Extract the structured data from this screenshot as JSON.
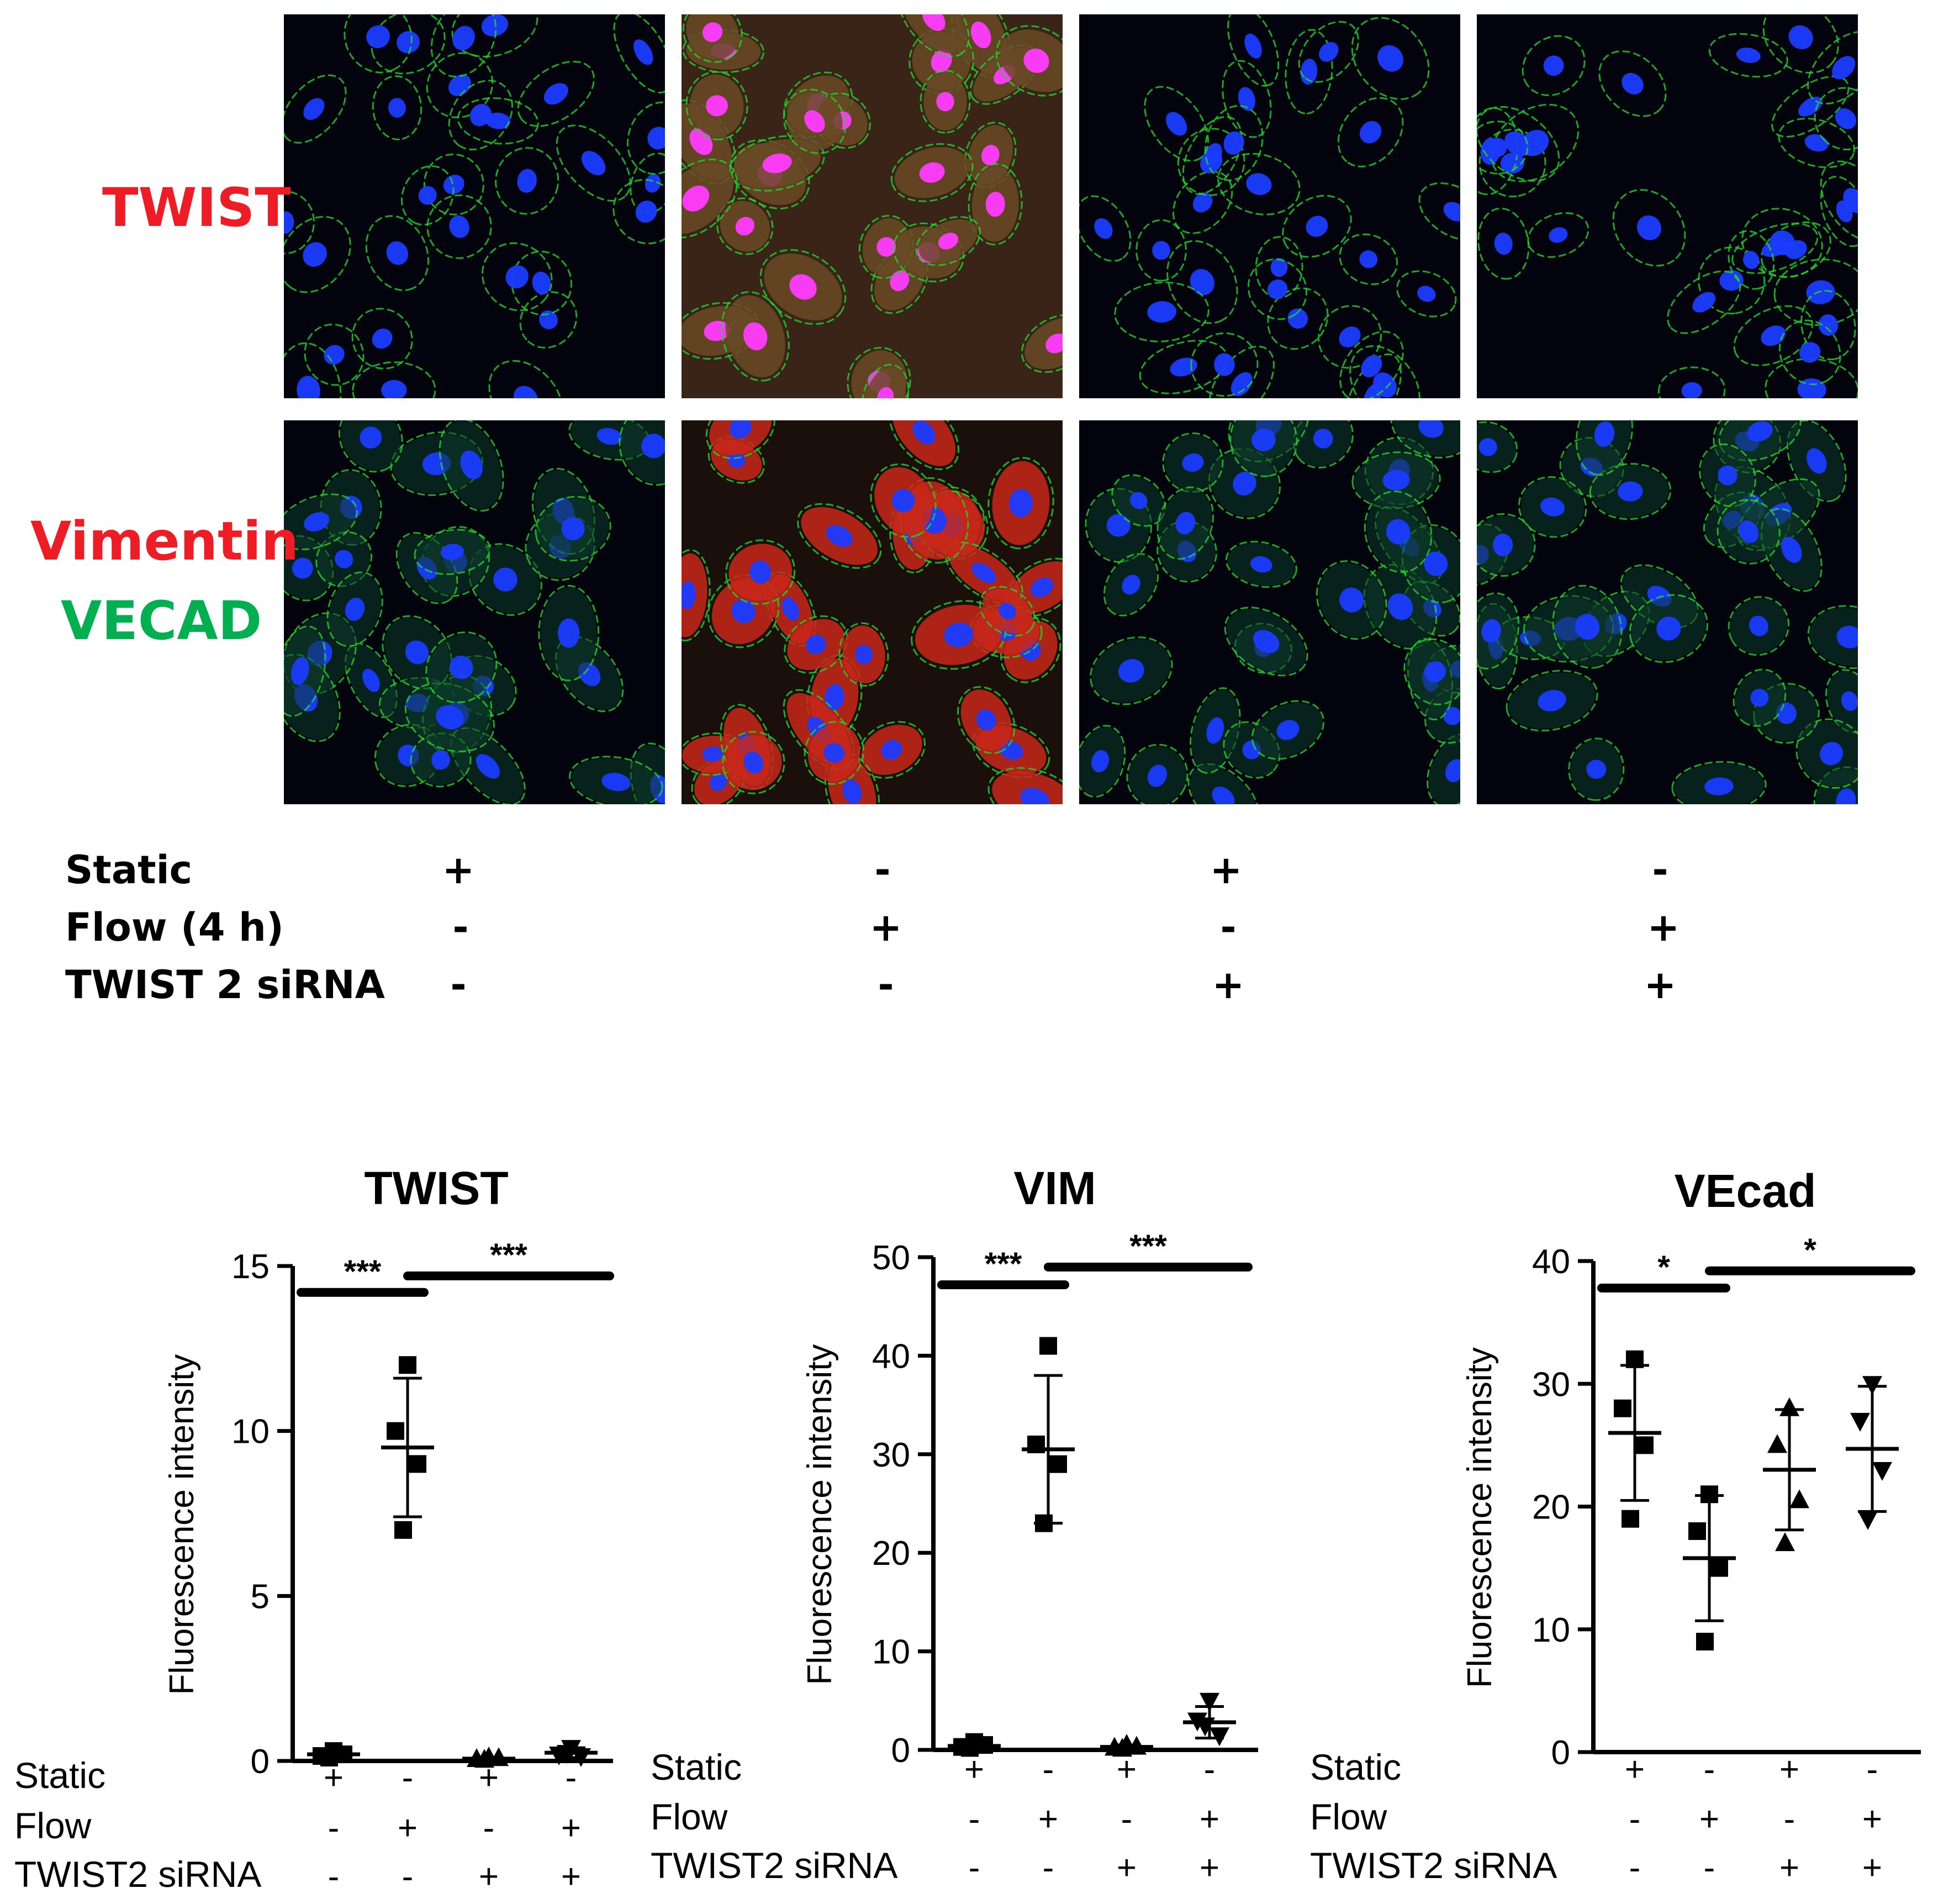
{
  "figure": {
    "micrograph_rows": [
      {
        "labels": [
          {
            "text": "TWIST",
            "color": "#ee1c24"
          }
        ]
      },
      {
        "labels": [
          {
            "text": "Vimentin",
            "color": "#ee1c24"
          },
          {
            "text": "VECAD",
            "color": "#00b050"
          }
        ]
      }
    ],
    "micrograph_columns": [
      {
        "red_signal": "none"
      },
      {
        "red_signal": "high"
      },
      {
        "red_signal": "none"
      },
      {
        "red_signal": "none"
      }
    ],
    "colors": {
      "nuclei": "#1a3cff",
      "junction": "#22d32a",
      "red": "#ff2a1a",
      "magenta": "#ff3cff"
    },
    "condition_table": {
      "rows": [
        {
          "label": "Static",
          "signs": [
            "+",
            "-",
            "+",
            "-"
          ]
        },
        {
          "label": "Flow (4 h)",
          "signs": [
            "-",
            "+",
            "-",
            "+"
          ]
        },
        {
          "label": "TWIST 2 siRNA",
          "signs": [
            "-",
            "-",
            "+",
            "+"
          ]
        }
      ]
    }
  },
  "chart_data": [
    {
      "type": "scatter",
      "title": "TWIST",
      "ylabel": "Fluorescence intensity",
      "ylim": [
        0,
        15
      ],
      "yticks": [
        "0",
        "5",
        "10",
        "15"
      ],
      "groups": [
        {
          "marker": "square",
          "values": [
            0.3,
            0.15,
            0.2,
            0.1
          ],
          "mean": 0.2,
          "sd": 0.1
        },
        {
          "marker": "square",
          "values": [
            12.0,
            10.0,
            9.0,
            7.0
          ],
          "mean": 9.5,
          "sd": 2.1
        },
        {
          "marker": "triangle-up",
          "values": [
            0.1,
            0.05,
            0.08,
            0.03
          ],
          "mean": 0.07,
          "sd": 0.04
        },
        {
          "marker": "triangle-down",
          "values": [
            0.4,
            0.2,
            0.15,
            0.25
          ],
          "mean": 0.25,
          "sd": 0.15
        }
      ],
      "significance": [
        {
          "label": "***",
          "from_group": 0,
          "to_group": 1,
          "y": 14.2
        },
        {
          "label": "***",
          "from_group": 1,
          "to_group": 3,
          "y": 14.7
        }
      ],
      "conditions": [
        {
          "label": "Static",
          "signs": [
            "+",
            "-",
            "+",
            "-"
          ]
        },
        {
          "label": "Flow",
          "signs": [
            "-",
            "+",
            "-",
            "+"
          ]
        },
        {
          "label": "TWIST2 siRNA",
          "signs": [
            "-",
            "-",
            "+",
            "+"
          ]
        }
      ]
    },
    {
      "type": "scatter",
      "title": "VIM",
      "ylabel": "Fluorescence intensity",
      "ylim": [
        0,
        50
      ],
      "yticks": [
        "0",
        "10",
        "20",
        "30",
        "40",
        "50"
      ],
      "groups": [
        {
          "marker": "square",
          "values": [
            0.8,
            0.3,
            0.5,
            0.2
          ],
          "mean": 0.4,
          "sd": 0.3
        },
        {
          "marker": "square",
          "values": [
            41.0,
            31.0,
            29.0,
            23.0
          ],
          "mean": 30.5,
          "sd": 7.5
        },
        {
          "marker": "triangle-up",
          "values": [
            0.5,
            0.2,
            0.3,
            0.1
          ],
          "mean": 0.3,
          "sd": 0.2
        },
        {
          "marker": "triangle-down",
          "values": [
            5.0,
            3.0,
            1.5,
            2.5
          ],
          "mean": 2.8,
          "sd": 1.6
        }
      ],
      "significance": [
        {
          "label": "***",
          "from_group": 0,
          "to_group": 1,
          "y": 47.2
        },
        {
          "label": "***",
          "from_group": 1,
          "to_group": 3,
          "y": 49.0
        }
      ],
      "conditions": [
        {
          "label": "Static",
          "signs": [
            "+",
            "-",
            "+",
            "-"
          ]
        },
        {
          "label": "Flow",
          "signs": [
            "-",
            "+",
            "-",
            "+"
          ]
        },
        {
          "label": "TWIST2 siRNA",
          "signs": [
            "-",
            "-",
            "+",
            "+"
          ]
        }
      ]
    },
    {
      "type": "scatter",
      "title": "VEcad",
      "ylabel": "Fluorescence intensity",
      "ylim": [
        0,
        40
      ],
      "yticks": [
        "0",
        "10",
        "20",
        "30",
        "40"
      ],
      "groups": [
        {
          "marker": "square",
          "values": [
            32.0,
            28.0,
            25.0,
            19.0
          ],
          "mean": 26.0,
          "sd": 5.5
        },
        {
          "marker": "square",
          "values": [
            21.0,
            18.0,
            15.0,
            9.0
          ],
          "mean": 15.8,
          "sd": 5.1
        },
        {
          "marker": "triangle-up",
          "values": [
            28.0,
            25.0,
            20.5,
            17.0
          ],
          "mean": 23.0,
          "sd": 4.9
        },
        {
          "marker": "triangle-down",
          "values": [
            30.0,
            27.0,
            23.0,
            19.0
          ],
          "mean": 24.7,
          "sd": 5.1
        }
      ],
      "significance": [
        {
          "label": "*",
          "from_group": 0,
          "to_group": 1,
          "y": 37.8
        },
        {
          "label": "*",
          "from_group": 1,
          "to_group": 3,
          "y": 39.2
        }
      ],
      "conditions": [
        {
          "label": "Static",
          "signs": [
            "+",
            "-",
            "+",
            "-"
          ]
        },
        {
          "label": "Flow",
          "signs": [
            "-",
            "+",
            "-",
            "+"
          ]
        },
        {
          "label": "TWIST2 siRNA",
          "signs": [
            "-",
            "-",
            "+",
            "+"
          ]
        }
      ]
    }
  ]
}
